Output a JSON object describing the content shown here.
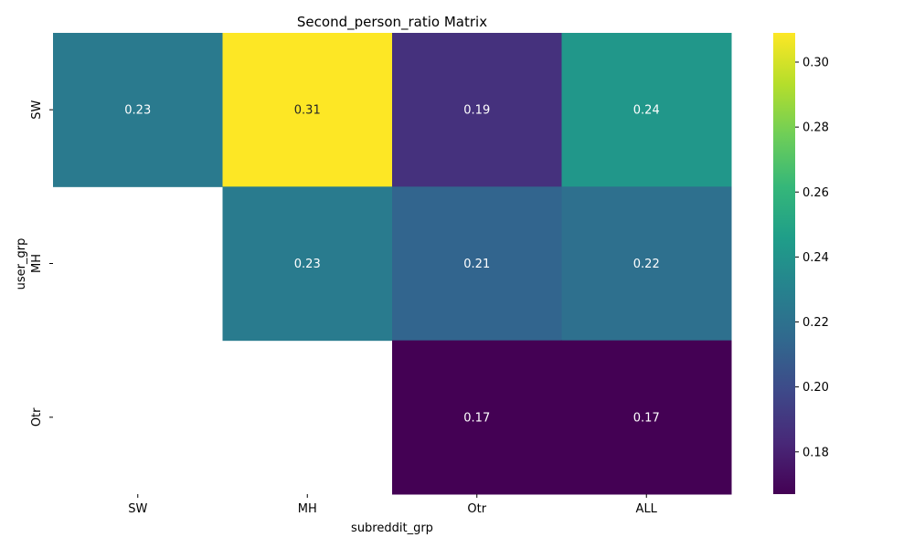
{
  "chart_data": {
    "type": "heatmap",
    "title": "Second_person_ratio Matrix",
    "xlabel": "subreddit_grp",
    "ylabel": "user_grp",
    "x_categories": [
      "SW",
      "MH",
      "Otr",
      "ALL"
    ],
    "y_categories": [
      "SW",
      "MH",
      "Otr"
    ],
    "values": [
      [
        0.225,
        0.309,
        0.187,
        0.242
      ],
      [
        null,
        0.226,
        0.213,
        0.219
      ],
      [
        null,
        null,
        0.167,
        0.167
      ]
    ],
    "labels": [
      [
        "0.23",
        "0.31",
        "0.19",
        "0.24"
      ],
      [
        "",
        "0.23",
        "0.21",
        "0.22"
      ],
      [
        "",
        "",
        "0.17",
        "0.17"
      ]
    ],
    "colorscale": "viridis",
    "color_range": [
      0.167,
      0.309
    ],
    "colorbar_ticks": [
      0.18,
      0.2,
      0.22,
      0.24,
      0.26,
      0.28,
      0.3
    ],
    "colorbar_tick_labels": [
      "0.18",
      "0.20",
      "0.22",
      "0.24",
      "0.26",
      "0.28",
      "0.30"
    ]
  }
}
